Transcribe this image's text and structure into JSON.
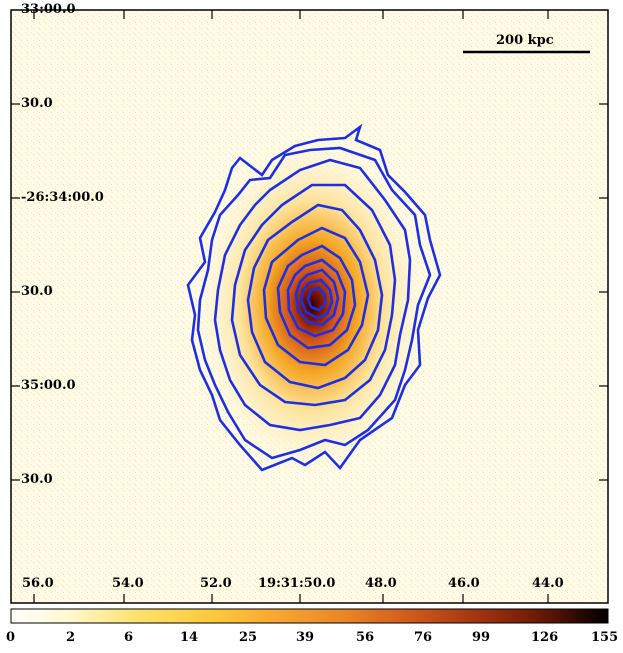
{
  "image": {
    "description_type": "astronomical X-ray surface brightness map with overlaid contours",
    "colors": {
      "background_low": "#fffbe8",
      "mid": "#f5a623",
      "high": "#7a1500",
      "peak": "#1a0000",
      "contours": "#1f2fe0",
      "frame": "#000000"
    }
  },
  "axes": {
    "y_ticks": [
      "33:00.0",
      "30.0",
      "-26:34:00.0",
      "30.0",
      "35:00.0",
      "30.0"
    ],
    "x_ticks": [
      "56.0",
      "54.0",
      "52.0",
      "19:31:50.0",
      "48.0",
      "46.0",
      "44.0"
    ]
  },
  "scalebar": {
    "label": "200 kpc"
  },
  "colorbar": {
    "labels": [
      "0",
      "2",
      "6",
      "14",
      "25",
      "39",
      "56",
      "76",
      "99",
      "126",
      "155"
    ],
    "stops": [
      "#ffffff",
      "#fff7cc",
      "#ffe066",
      "#ffc83c",
      "#f7a530",
      "#e98526",
      "#cf5a1a",
      "#a33510",
      "#6e1a06",
      "#2e0a02",
      "#000000"
    ]
  }
}
